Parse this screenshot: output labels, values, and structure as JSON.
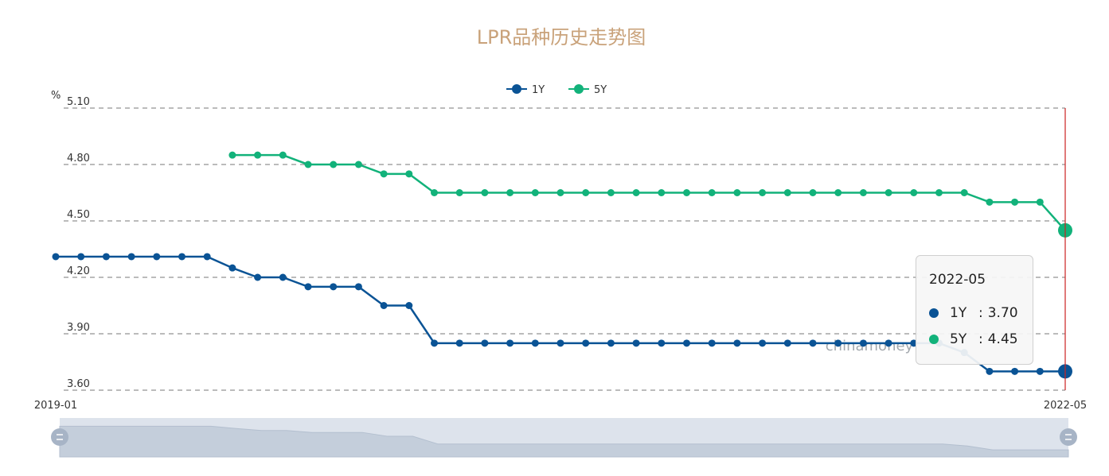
{
  "chart_data": {
    "type": "line",
    "title": "LPR品种历史走势图",
    "y_unit": "%",
    "ylim": [
      3.6,
      5.1
    ],
    "y_ticks": [
      "5.10",
      "4.80",
      "4.50",
      "4.20",
      "3.90",
      "3.60"
    ],
    "y_tick_values": [
      5.1,
      4.8,
      4.5,
      4.2,
      3.9,
      3.6
    ],
    "x_range_labels": [
      "2019-01",
      "2022-05"
    ],
    "grid": true,
    "legend_position": "top-center",
    "watermark": "chinamoney",
    "x": [
      "2019-01",
      "2019-02",
      "2019-03",
      "2019-04",
      "2019-05",
      "2019-06",
      "2019-07",
      "2019-08",
      "2019-09",
      "2019-10",
      "2019-11",
      "2019-12",
      "2020-01",
      "2020-02",
      "2020-03",
      "2020-04",
      "2020-05",
      "2020-06",
      "2020-07",
      "2020-08",
      "2020-09",
      "2020-10",
      "2020-11",
      "2020-12",
      "2021-01",
      "2021-02",
      "2021-03",
      "2021-04",
      "2021-05",
      "2021-06",
      "2021-07",
      "2021-08",
      "2021-09",
      "2021-10",
      "2021-11",
      "2021-12",
      "2022-01",
      "2022-02",
      "2022-03",
      "2022-04",
      "2022-05"
    ],
    "series": [
      {
        "name": "1Y",
        "color": "#0a5395",
        "values": [
          4.31,
          4.31,
          4.31,
          4.31,
          4.31,
          4.31,
          4.31,
          4.25,
          4.2,
          4.2,
          4.15,
          4.15,
          4.15,
          4.05,
          4.05,
          3.85,
          3.85,
          3.85,
          3.85,
          3.85,
          3.85,
          3.85,
          3.85,
          3.85,
          3.85,
          3.85,
          3.85,
          3.85,
          3.85,
          3.85,
          3.85,
          3.85,
          3.85,
          3.85,
          3.85,
          3.85,
          3.8,
          3.7,
          3.7,
          3.7,
          3.7
        ]
      },
      {
        "name": "5Y",
        "color": "#12b27a",
        "values": [
          null,
          null,
          null,
          null,
          null,
          null,
          null,
          4.85,
          4.85,
          4.85,
          4.8,
          4.8,
          4.8,
          4.75,
          4.75,
          4.65,
          4.65,
          4.65,
          4.65,
          4.65,
          4.65,
          4.65,
          4.65,
          4.65,
          4.65,
          4.65,
          4.65,
          4.65,
          4.65,
          4.65,
          4.65,
          4.65,
          4.65,
          4.65,
          4.65,
          4.65,
          4.65,
          4.6,
          4.6,
          4.6,
          4.45
        ]
      }
    ],
    "tooltip": {
      "date": "2022-05",
      "rows": [
        {
          "name": "1Y",
          "sep": ":",
          "value": "3.70",
          "color": "#0a5395"
        },
        {
          "name": "5Y",
          "sep": ":",
          "value": "4.45",
          "color": "#12b27a"
        }
      ]
    },
    "highlight_x": "2022-05",
    "colors": {
      "title": "#c9a27a",
      "grid": "#777777",
      "cursor": "#cc2222",
      "zoom_bg": "#dde3ec",
      "zoom_fill": "#c4cedb",
      "zoom_handle": "#a7b4c6"
    }
  }
}
